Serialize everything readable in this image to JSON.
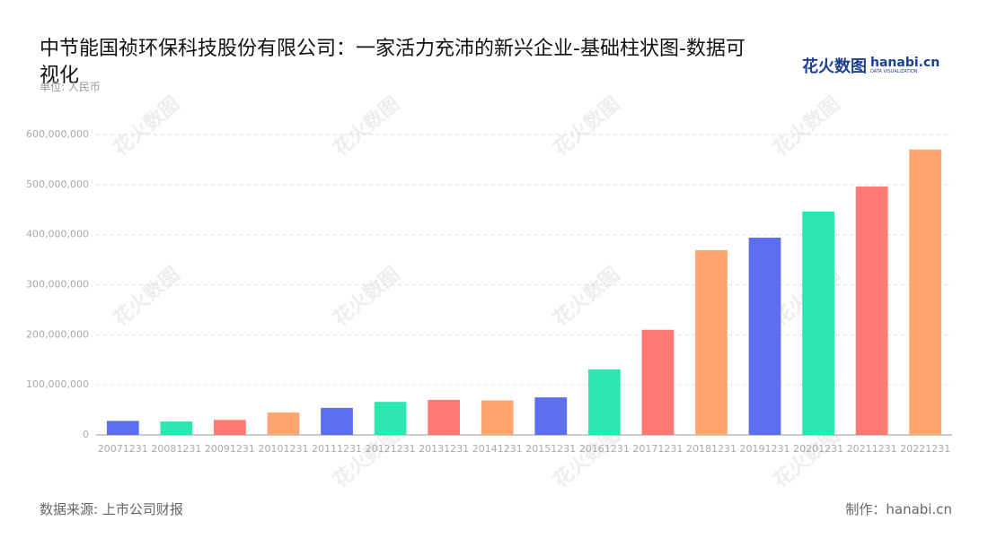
{
  "chart_data": {
    "type": "bar",
    "title": "中节能国祯环保科技股份有限公司：一家活力充沛的新兴企业-基础柱状图-数据可视化",
    "unit": "单位: 人民币",
    "source": "数据来源: 上市公司财报",
    "credit": "制作：hanabi.cn",
    "logo": {
      "brand": "花火数图",
      "site": "hanabi.cn",
      "tagline": "DATA VISUALIZATION"
    },
    "categories": [
      "20071231",
      "20081231",
      "20091231",
      "20101231",
      "20111231",
      "20121231",
      "20131231",
      "20141231",
      "20151231",
      "20161231",
      "20171231",
      "20181231",
      "20191231",
      "20201231",
      "20211231",
      "20221231"
    ],
    "values": [
      28000000,
      27000000,
      30000000,
      45000000,
      54000000,
      66000000,
      70000000,
      69000000,
      75000000,
      131000000,
      210000000,
      369000000,
      394000000,
      446000000,
      496000000,
      570000000
    ],
    "colors": [
      "#5b6ff0",
      "#2de6b0",
      "#ff7a72",
      "#ffa56f"
    ],
    "ylim": [
      0,
      600000000
    ],
    "yticks": [
      0,
      {
        "value": 100000000,
        "label": "100,000,000"
      },
      {
        "value": 200000000,
        "label": "200,000,000"
      },
      {
        "value": 300000000,
        "label": "300,000,000"
      },
      {
        "value": 400000000,
        "label": "400,000,000"
      },
      {
        "value": 500000000,
        "label": "500,000,000"
      },
      {
        "value": 600000000,
        "label": "600,000,000"
      }
    ],
    "grid": true
  }
}
